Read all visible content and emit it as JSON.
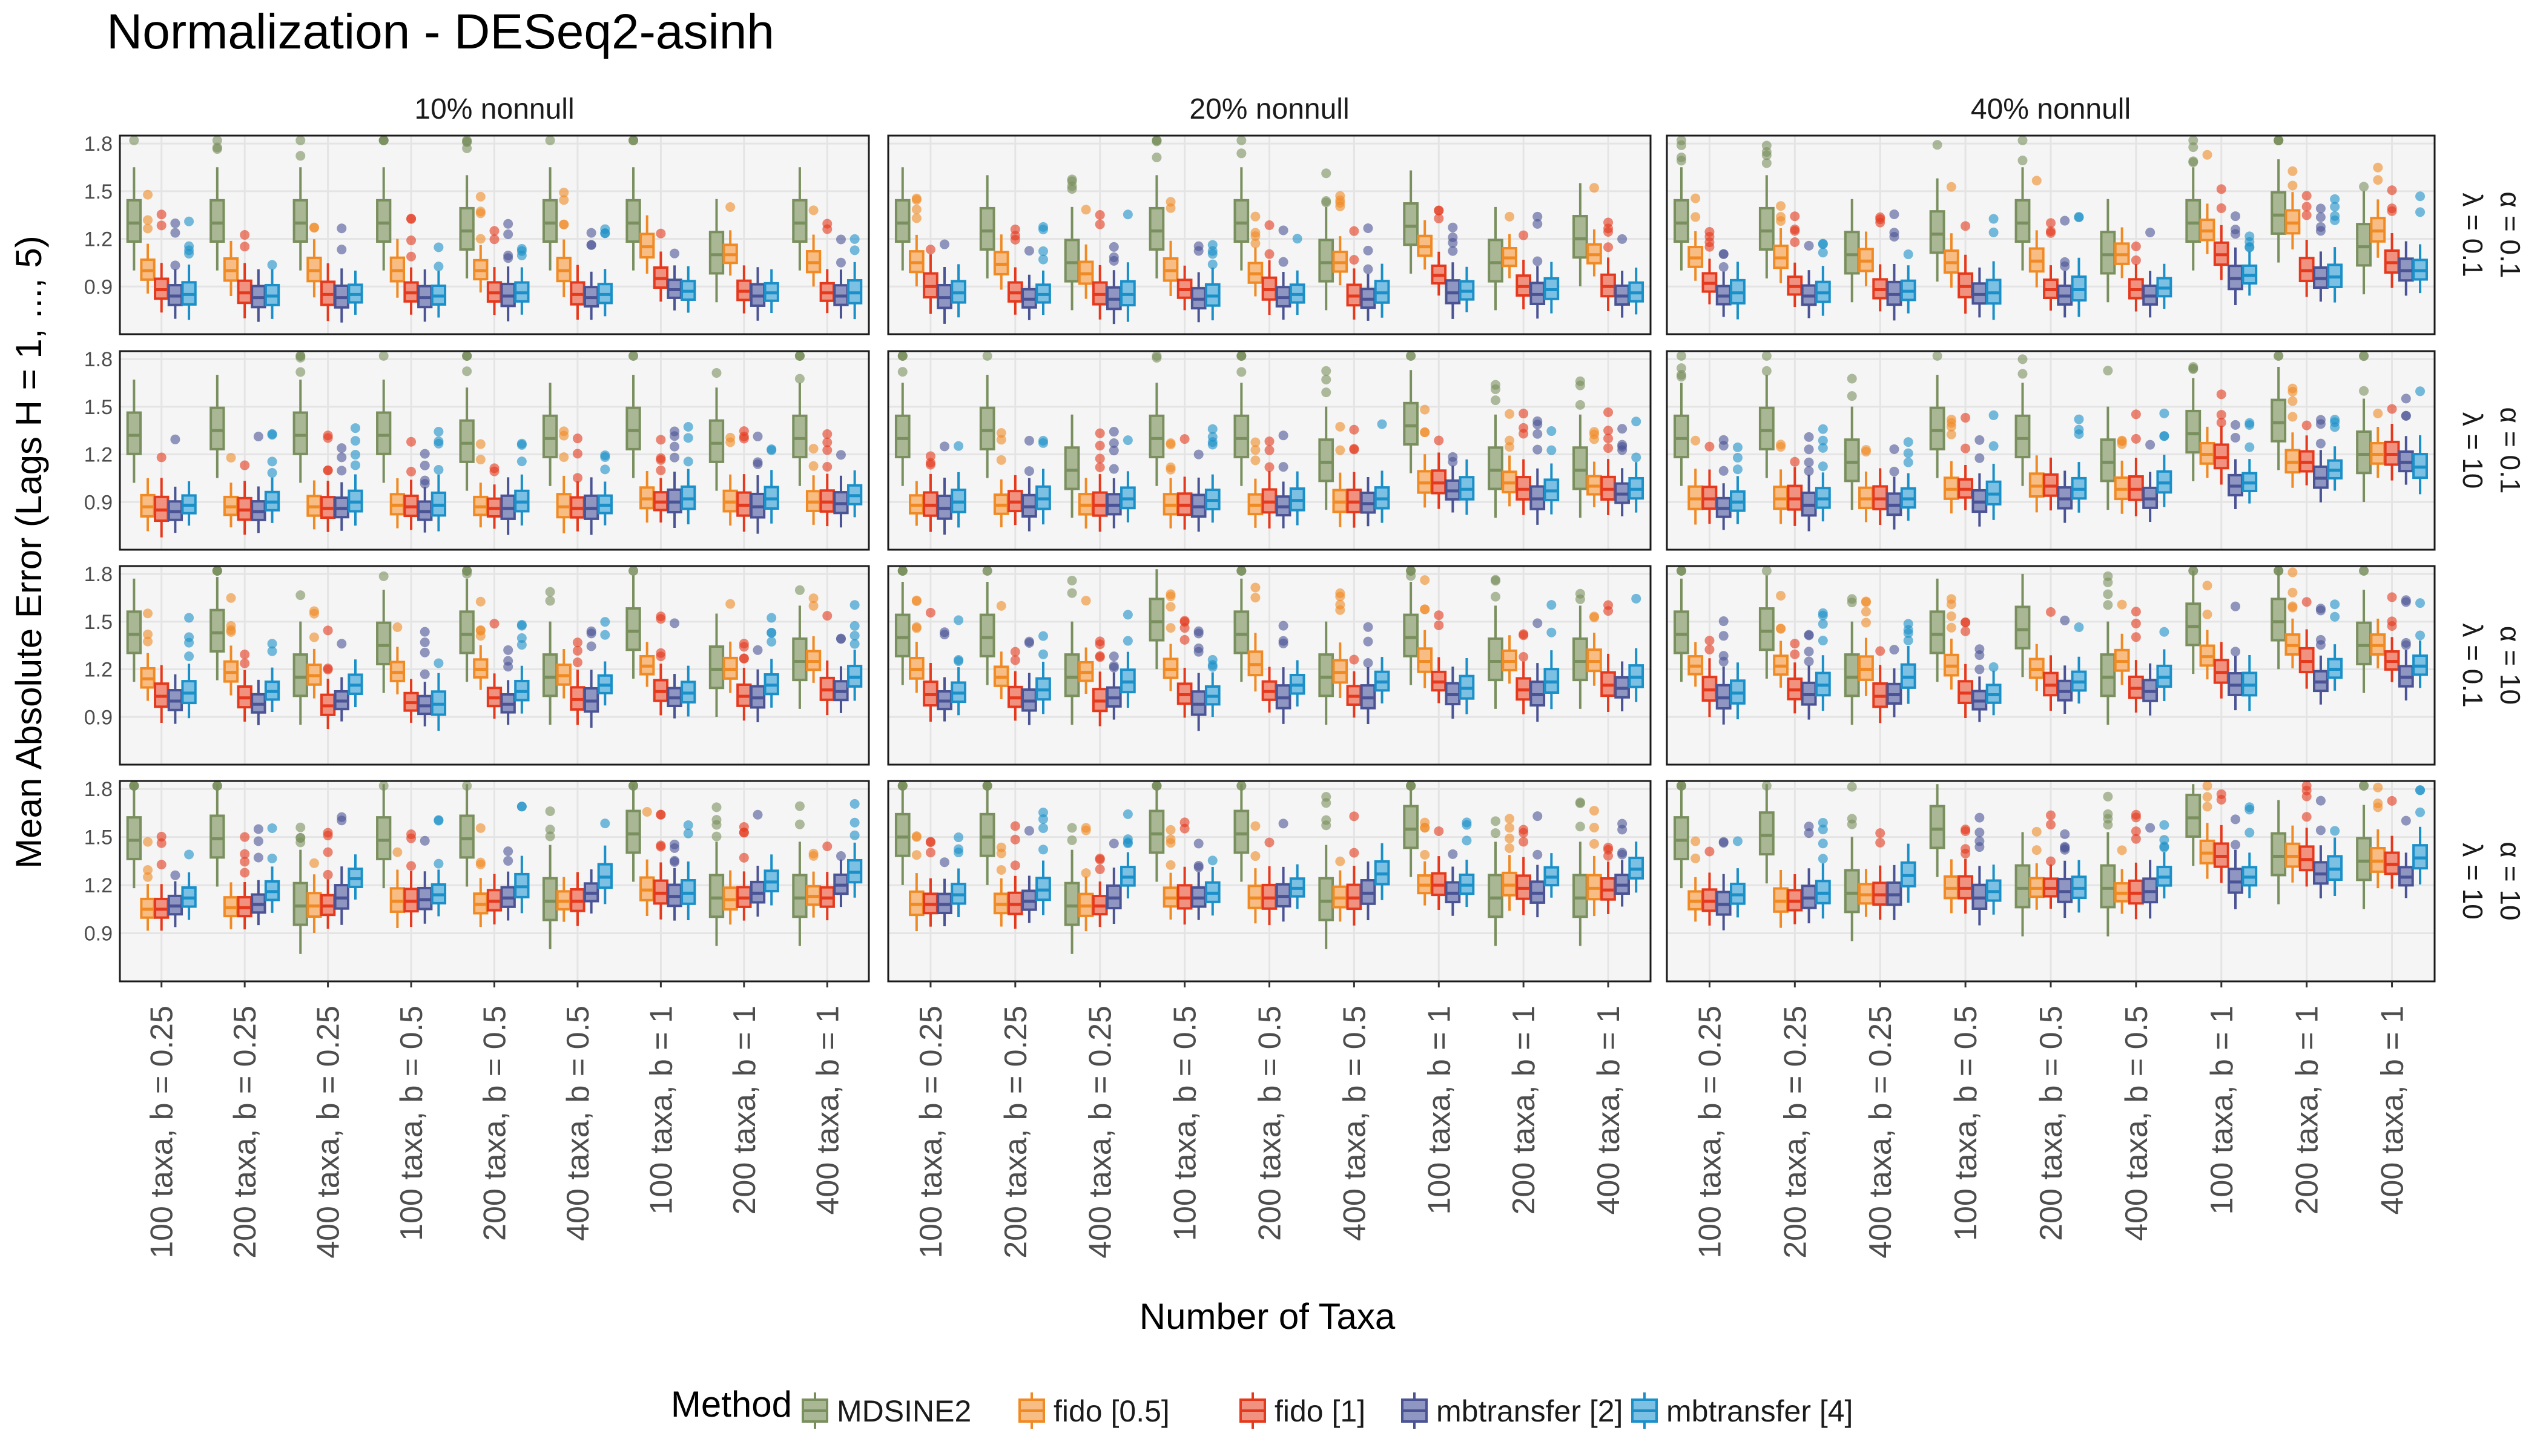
{
  "chart_data": {
    "type": "boxplot",
    "title": "Normalization - DESeq2-asinh",
    "xlabel": "Number of Taxa",
    "ylabel": "Mean Absolute Error (Lags H = 1, ..., 5)",
    "ylim": [
      0.6,
      1.85
    ],
    "yticks": [
      "0.9",
      "1.2",
      "1.5",
      "1.8"
    ],
    "grid": true,
    "legend_position": "bottom",
    "legend_title": "Method",
    "columns": [
      "10% nonnull",
      "20% nonnull",
      "40% nonnull"
    ],
    "rows": [
      {
        "alpha": "α = 0.1",
        "lambda": "λ = 0.1"
      },
      {
        "alpha": "α = 0.1",
        "lambda": "λ = 10"
      },
      {
        "alpha": "α = 10",
        "lambda": "λ = 0.1"
      },
      {
        "alpha": "α = 10",
        "lambda": "λ = 10"
      }
    ],
    "categories": [
      "100 taxa, b = 0.25",
      "200 taxa, b = 0.25",
      "400 taxa, b = 0.25",
      "100 taxa, b = 0.5",
      "200 taxa, b = 0.5",
      "400 taxa, b = 0.5",
      "100 taxa, b = 1",
      "200 taxa, b = 1",
      "400 taxa, b = 1"
    ],
    "series": [
      {
        "name": "MDSINE2",
        "color": "#7a8f5e",
        "fill": "#a9b795"
      },
      {
        "name": "fido [0.5]",
        "color": "#f08a24",
        "fill": "#f7bd84"
      },
      {
        "name": "fido [1]",
        "color": "#e5391d",
        "fill": "#f0927f"
      },
      {
        "name": "mbtransfer [2]",
        "color": "#4a5394",
        "fill": "#9096c2"
      },
      {
        "name": "mbtransfer [4]",
        "color": "#1a8fc8",
        "fill": "#7cc0e3"
      }
    ],
    "panels": [
      [
        [
          [
            1.3,
            1.3,
            1.3,
            1.3,
            1.25,
            1.3,
            1.3,
            1.1,
            1.3
          ],
          [
            1.0,
            1.0,
            1.0,
            1.0,
            1.0,
            1.0,
            1.15,
            1.1,
            1.05
          ],
          [
            0.88,
            0.86,
            0.85,
            0.86,
            0.86,
            0.85,
            0.95,
            0.87,
            0.86
          ],
          [
            0.84,
            0.83,
            0.83,
            0.83,
            0.84,
            0.83,
            0.88,
            0.84,
            0.84
          ],
          [
            0.85,
            0.84,
            0.85,
            0.84,
            0.86,
            0.85,
            0.87,
            0.86,
            0.86
          ]
        ],
        [
          [
            1.32,
            1.35,
            1.32,
            1.32,
            1.27,
            1.3,
            1.35,
            1.27,
            1.3
          ],
          [
            0.87,
            0.87,
            0.87,
            0.88,
            0.87,
            0.87,
            0.92,
            0.9,
            0.9
          ],
          [
            0.85,
            0.85,
            0.86,
            0.87,
            0.86,
            0.86,
            0.9,
            0.88,
            0.9
          ],
          [
            0.84,
            0.84,
            0.86,
            0.84,
            0.86,
            0.86,
            0.9,
            0.87,
            0.89
          ],
          [
            0.88,
            0.9,
            0.9,
            0.88,
            0.9,
            0.88,
            0.92,
            0.92,
            0.94
          ]
        ],
        [
          [
            1.42,
            1.43,
            1.15,
            1.35,
            1.42,
            1.15,
            1.44,
            1.2,
            1.25
          ],
          [
            1.14,
            1.18,
            1.16,
            1.18,
            1.2,
            1.16,
            1.22,
            1.2,
            1.25
          ],
          [
            1.03,
            1.02,
            0.97,
            0.99,
            1.02,
            1.01,
            1.06,
            1.03,
            1.07
          ],
          [
            1.0,
            0.98,
            1.0,
            0.97,
            0.98,
            1.0,
            1.02,
            1.02,
            1.06
          ],
          [
            1.05,
            1.06,
            1.1,
            0.98,
            1.06,
            1.1,
            1.05,
            1.1,
            1.15
          ]
        ],
        [
          [
            1.48,
            1.49,
            1.07,
            1.48,
            1.49,
            1.1,
            1.52,
            1.12,
            1.12
          ],
          [
            1.05,
            1.06,
            1.07,
            1.1,
            1.08,
            1.1,
            1.17,
            1.11,
            1.13
          ],
          [
            1.05,
            1.06,
            1.07,
            1.1,
            1.1,
            1.1,
            1.15,
            1.12,
            1.12
          ],
          [
            1.07,
            1.08,
            1.12,
            1.11,
            1.12,
            1.15,
            1.13,
            1.15,
            1.2
          ],
          [
            1.12,
            1.16,
            1.24,
            1.14,
            1.19,
            1.25,
            1.15,
            1.22,
            1.28
          ]
        ]
      ],
      [
        [
          [
            1.3,
            1.25,
            1.05,
            1.25,
            1.3,
            1.05,
            1.28,
            1.05,
            1.2
          ],
          [
            1.05,
            1.04,
            0.98,
            1.0,
            0.98,
            1.05,
            1.15,
            1.08,
            1.1
          ],
          [
            0.9,
            0.86,
            0.85,
            0.88,
            0.88,
            0.84,
            0.97,
            0.9,
            0.9
          ],
          [
            0.83,
            0.82,
            0.82,
            0.82,
            0.83,
            0.82,
            0.86,
            0.85,
            0.84
          ],
          [
            0.86,
            0.85,
            0.85,
            0.84,
            0.85,
            0.86,
            0.87,
            0.88,
            0.86
          ]
        ],
        [
          [
            1.3,
            1.35,
            1.1,
            1.3,
            1.3,
            1.15,
            1.38,
            1.1,
            1.1
          ],
          [
            0.88,
            0.88,
            0.88,
            0.88,
            0.88,
            0.9,
            1.02,
            1.02,
            1.0
          ],
          [
            0.88,
            0.9,
            0.88,
            0.88,
            0.9,
            0.9,
            1.02,
            0.98,
            0.98
          ],
          [
            0.86,
            0.87,
            0.88,
            0.87,
            0.87,
            0.89,
            0.97,
            0.92,
            0.95
          ],
          [
            0.9,
            0.92,
            0.92,
            0.91,
            0.91,
            0.92,
            0.98,
            0.97,
            0.98
          ]
        ],
        [
          [
            1.4,
            1.4,
            1.15,
            1.5,
            1.42,
            1.15,
            1.4,
            1.25,
            1.25
          ],
          [
            1.2,
            1.15,
            1.18,
            1.2,
            1.23,
            1.18,
            1.25,
            1.25,
            1.25
          ],
          [
            1.04,
            1.02,
            1.0,
            1.04,
            1.06,
            1.03,
            1.12,
            1.07,
            1.1
          ],
          [
            1.0,
            1.0,
            1.02,
            0.98,
            1.02,
            1.02,
            1.04,
            1.04,
            1.08
          ],
          [
            1.05,
            1.07,
            1.12,
            1.03,
            1.1,
            1.12,
            1.08,
            1.12,
            1.15
          ]
        ],
        [
          [
            1.5,
            1.5,
            1.07,
            1.52,
            1.52,
            1.1,
            1.55,
            1.12,
            1.12
          ],
          [
            1.08,
            1.08,
            1.07,
            1.12,
            1.12,
            1.12,
            1.2,
            1.2,
            1.18
          ],
          [
            1.08,
            1.08,
            1.07,
            1.12,
            1.12,
            1.12,
            1.2,
            1.18,
            1.17
          ],
          [
            1.08,
            1.1,
            1.12,
            1.12,
            1.13,
            1.15,
            1.15,
            1.15,
            1.2
          ],
          [
            1.14,
            1.17,
            1.25,
            1.15,
            1.18,
            1.27,
            1.2,
            1.25,
            1.3
          ]
        ]
      ],
      [
        [
          [
            1.3,
            1.25,
            1.1,
            1.23,
            1.3,
            1.1,
            1.3,
            1.35,
            1.15
          ],
          [
            1.08,
            1.08,
            1.06,
            1.05,
            1.06,
            1.1,
            1.25,
            1.3,
            1.25
          ],
          [
            0.92,
            0.9,
            0.88,
            0.9,
            0.88,
            0.88,
            1.1,
            1.0,
            1.05
          ],
          [
            0.84,
            0.84,
            0.85,
            0.85,
            0.84,
            0.84,
            0.95,
            0.95,
            1.0
          ],
          [
            0.86,
            0.86,
            0.87,
            0.86,
            0.88,
            0.89,
            0.97,
            0.96,
            1.0
          ]
        ],
        [
          [
            1.3,
            1.35,
            1.15,
            1.35,
            1.3,
            1.15,
            1.33,
            1.4,
            1.2
          ],
          [
            0.92,
            0.92,
            0.92,
            0.98,
            1.0,
            0.98,
            1.2,
            1.15,
            1.2
          ],
          [
            0.92,
            0.92,
            0.92,
            0.98,
            1.0,
            0.98,
            1.18,
            1.15,
            1.2
          ],
          [
            0.86,
            0.88,
            0.88,
            0.9,
            0.92,
            0.92,
            1.0,
            1.05,
            1.15
          ],
          [
            0.9,
            0.92,
            0.92,
            0.95,
            0.98,
            1.02,
            1.02,
            1.1,
            1.12
          ]
        ],
        [
          [
            1.42,
            1.44,
            1.15,
            1.42,
            1.45,
            1.15,
            1.47,
            1.5,
            1.35
          ],
          [
            1.22,
            1.22,
            1.2,
            1.22,
            1.2,
            1.25,
            1.28,
            1.35,
            1.35
          ],
          [
            1.07,
            1.07,
            1.03,
            1.05,
            1.1,
            1.08,
            1.18,
            1.25,
            1.25
          ],
          [
            1.02,
            1.04,
            1.04,
            1.0,
            1.06,
            1.06,
            1.1,
            1.12,
            1.15
          ],
          [
            1.05,
            1.1,
            1.15,
            1.04,
            1.12,
            1.15,
            1.1,
            1.2,
            1.22
          ]
        ],
        [
          [
            1.48,
            1.51,
            1.15,
            1.55,
            1.18,
            1.18,
            1.62,
            1.38,
            1.35
          ],
          [
            1.1,
            1.1,
            1.14,
            1.18,
            1.18,
            1.15,
            1.4,
            1.38,
            1.35
          ],
          [
            1.1,
            1.1,
            1.14,
            1.18,
            1.18,
            1.15,
            1.38,
            1.36,
            1.33
          ],
          [
            1.08,
            1.12,
            1.14,
            1.12,
            1.16,
            1.16,
            1.22,
            1.27,
            1.25
          ],
          [
            1.14,
            1.15,
            1.26,
            1.16,
            1.18,
            1.25,
            1.25,
            1.3,
            1.37
          ]
        ]
      ]
    ]
  }
}
